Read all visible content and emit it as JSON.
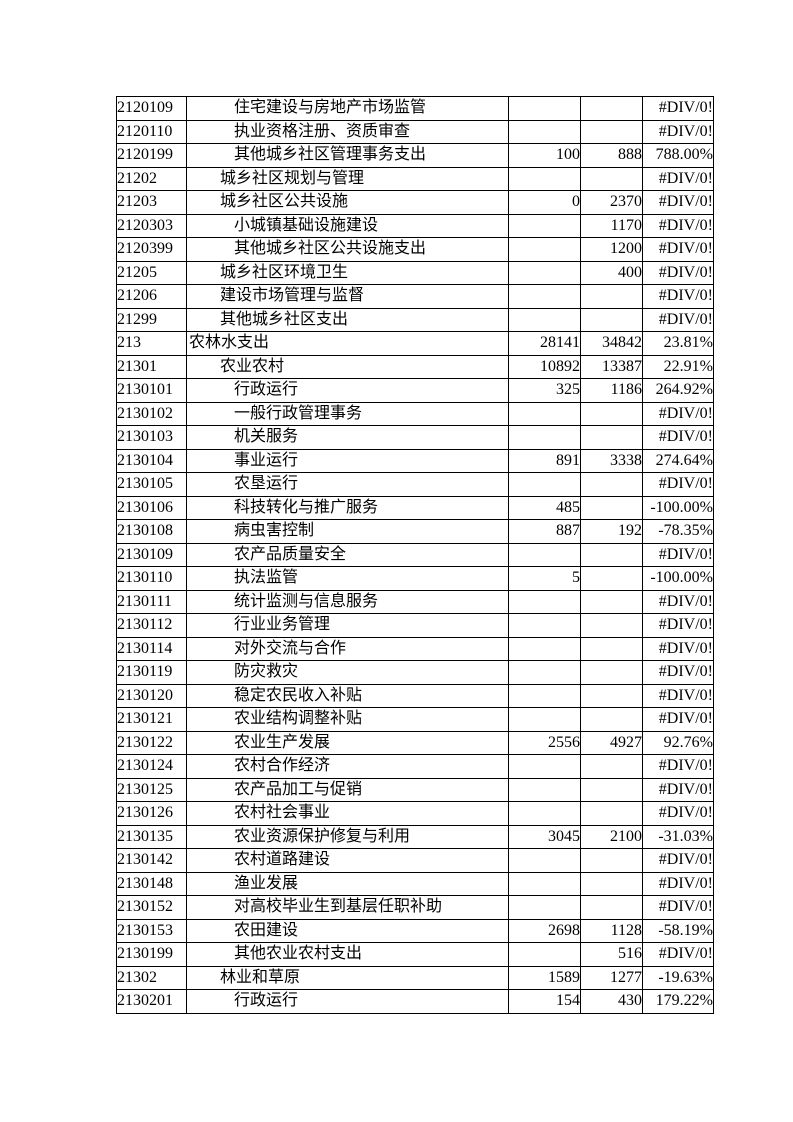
{
  "colors": {
    "page_background": "#ffffff",
    "table_border": "#000000",
    "text": "#000000"
  },
  "table": {
    "error_value": "#DIV/0!",
    "rows": [
      {
        "code": "2120109",
        "name": "住宅建设与房地产市场监管",
        "level": 2,
        "v1": "",
        "v2": "",
        "pct": "#DIV/0!"
      },
      {
        "code": "2120110",
        "name": "执业资格注册、资质审查",
        "level": 2,
        "v1": "",
        "v2": "",
        "pct": "#DIV/0!"
      },
      {
        "code": "2120199",
        "name": "其他城乡社区管理事务支出",
        "level": 2,
        "v1": "100",
        "v2": "888",
        "pct": "788.00%"
      },
      {
        "code": "21202",
        "name": "城乡社区规划与管理",
        "level": 1,
        "v1": "",
        "v2": "",
        "pct": "#DIV/0!"
      },
      {
        "code": "21203",
        "name": "城乡社区公共设施",
        "level": 1,
        "v1": "0",
        "v2": "2370",
        "pct": "#DIV/0!"
      },
      {
        "code": "2120303",
        "name": "小城镇基础设施建设",
        "level": 2,
        "v1": "",
        "v2": "1170",
        "pct": "#DIV/0!"
      },
      {
        "code": "2120399",
        "name": "其他城乡社区公共设施支出",
        "level": 2,
        "v1": "",
        "v2": "1200",
        "pct": "#DIV/0!"
      },
      {
        "code": "21205",
        "name": "城乡社区环境卫生",
        "level": 1,
        "v1": "",
        "v2": "400",
        "pct": "#DIV/0!"
      },
      {
        "code": "21206",
        "name": "建设市场管理与监督",
        "level": 1,
        "v1": "",
        "v2": "",
        "pct": "#DIV/0!"
      },
      {
        "code": "21299",
        "name": "其他城乡社区支出",
        "level": 1,
        "v1": "",
        "v2": "",
        "pct": "#DIV/0!"
      },
      {
        "code": "213",
        "name": "农林水支出",
        "level": 0,
        "v1": "28141",
        "v2": "34842",
        "pct": "23.81%"
      },
      {
        "code": "21301",
        "name": "农业农村",
        "level": 1,
        "v1": "10892",
        "v2": "13387",
        "pct": "22.91%"
      },
      {
        "code": "2130101",
        "name": "行政运行",
        "level": 2,
        "v1": "325",
        "v2": "1186",
        "pct": "264.92%"
      },
      {
        "code": "2130102",
        "name": "一般行政管理事务",
        "level": 2,
        "v1": "",
        "v2": "",
        "pct": "#DIV/0!"
      },
      {
        "code": "2130103",
        "name": "机关服务",
        "level": 2,
        "v1": "",
        "v2": "",
        "pct": "#DIV/0!"
      },
      {
        "code": "2130104",
        "name": "事业运行",
        "level": 2,
        "v1": "891",
        "v2": "3338",
        "pct": "274.64%"
      },
      {
        "code": "2130105",
        "name": "农垦运行",
        "level": 2,
        "v1": "",
        "v2": "",
        "pct": "#DIV/0!"
      },
      {
        "code": "2130106",
        "name": "科技转化与推广服务",
        "level": 2,
        "v1": "485",
        "v2": "",
        "pct": "-100.00%"
      },
      {
        "code": "2130108",
        "name": "病虫害控制",
        "level": 2,
        "v1": "887",
        "v2": "192",
        "pct": "-78.35%"
      },
      {
        "code": "2130109",
        "name": "农产品质量安全",
        "level": 2,
        "v1": "",
        "v2": "",
        "pct": "#DIV/0!"
      },
      {
        "code": "2130110",
        "name": "执法监管",
        "level": 2,
        "v1": "5",
        "v2": "",
        "pct": "-100.00%"
      },
      {
        "code": "2130111",
        "name": "统计监测与信息服务",
        "level": 2,
        "v1": "",
        "v2": "",
        "pct": "#DIV/0!"
      },
      {
        "code": "2130112",
        "name": "行业业务管理",
        "level": 2,
        "v1": "",
        "v2": "",
        "pct": "#DIV/0!"
      },
      {
        "code": "2130114",
        "name": "对外交流与合作",
        "level": 2,
        "v1": "",
        "v2": "",
        "pct": "#DIV/0!"
      },
      {
        "code": "2130119",
        "name": "防灾救灾",
        "level": 2,
        "v1": "",
        "v2": "",
        "pct": "#DIV/0!"
      },
      {
        "code": "2130120",
        "name": "稳定农民收入补贴",
        "level": 2,
        "v1": "",
        "v2": "",
        "pct": "#DIV/0!"
      },
      {
        "code": "2130121",
        "name": "农业结构调整补贴",
        "level": 2,
        "v1": "",
        "v2": "",
        "pct": "#DIV/0!"
      },
      {
        "code": "2130122",
        "name": "农业生产发展",
        "level": 2,
        "v1": "2556",
        "v2": "4927",
        "pct": "92.76%"
      },
      {
        "code": "2130124",
        "name": "农村合作经济",
        "level": 2,
        "v1": "",
        "v2": "",
        "pct": "#DIV/0!"
      },
      {
        "code": "2130125",
        "name": "农产品加工与促销",
        "level": 2,
        "v1": "",
        "v2": "",
        "pct": "#DIV/0!"
      },
      {
        "code": "2130126",
        "name": "农村社会事业",
        "level": 2,
        "v1": "",
        "v2": "",
        "pct": "#DIV/0!"
      },
      {
        "code": "2130135",
        "name": "农业资源保护修复与利用",
        "level": 2,
        "v1": "3045",
        "v2": "2100",
        "pct": "-31.03%"
      },
      {
        "code": "2130142",
        "name": "农村道路建设",
        "level": 2,
        "v1": "",
        "v2": "",
        "pct": "#DIV/0!"
      },
      {
        "code": "2130148",
        "name": "渔业发展",
        "level": 2,
        "v1": "",
        "v2": "",
        "pct": "#DIV/0!"
      },
      {
        "code": "2130152",
        "name": "对高校毕业生到基层任职补助",
        "level": 2,
        "v1": "",
        "v2": "",
        "pct": "#DIV/0!"
      },
      {
        "code": "2130153",
        "name": "农田建设",
        "level": 2,
        "v1": "2698",
        "v2": "1128",
        "pct": "-58.19%"
      },
      {
        "code": "2130199",
        "name": "其他农业农村支出",
        "level": 2,
        "v1": "",
        "v2": "516",
        "pct": "#DIV/0!"
      },
      {
        "code": "21302",
        "name": "林业和草原",
        "level": 1,
        "v1": "1589",
        "v2": "1277",
        "pct": "-19.63%"
      },
      {
        "code": "2130201",
        "name": "行政运行",
        "level": 2,
        "v1": "154",
        "v2": "430",
        "pct": "179.22%"
      }
    ]
  }
}
